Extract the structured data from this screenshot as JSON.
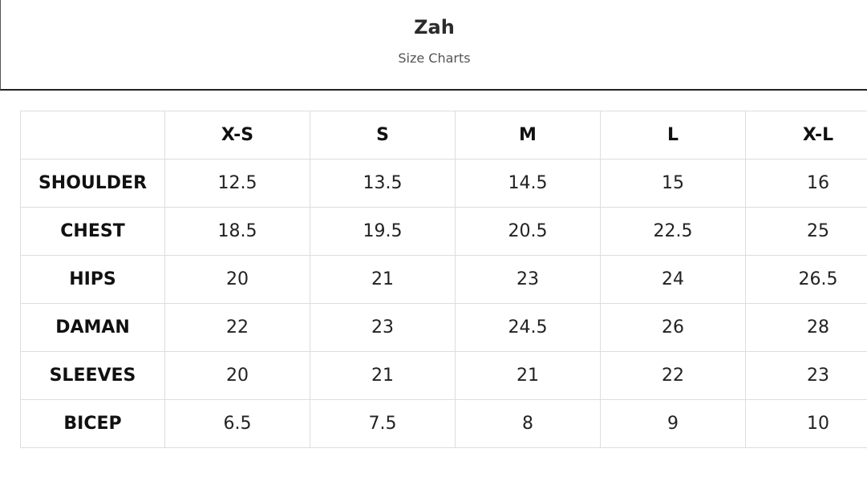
{
  "header": {
    "title": "Zah",
    "subtitle": "Size Charts"
  },
  "table": {
    "columns": [
      "X-S",
      "S",
      "M",
      "L",
      "X-L"
    ],
    "rows": [
      {
        "label": "SHOULDER",
        "values": [
          12.5,
          13.5,
          14.5,
          15,
          16
        ]
      },
      {
        "label": "CHEST",
        "values": [
          18.5,
          19.5,
          20.5,
          22.5,
          25
        ]
      },
      {
        "label": "HIPS",
        "values": [
          20,
          21,
          23,
          24,
          26.5
        ]
      },
      {
        "label": "DAMAN",
        "values": [
          22,
          23,
          24.5,
          26,
          28
        ]
      },
      {
        "label": "SLEEVES",
        "values": [
          20,
          21,
          21,
          22,
          23
        ]
      },
      {
        "label": "BICEP",
        "values": [
          6.5,
          7.5,
          8,
          9,
          10
        ]
      }
    ]
  }
}
